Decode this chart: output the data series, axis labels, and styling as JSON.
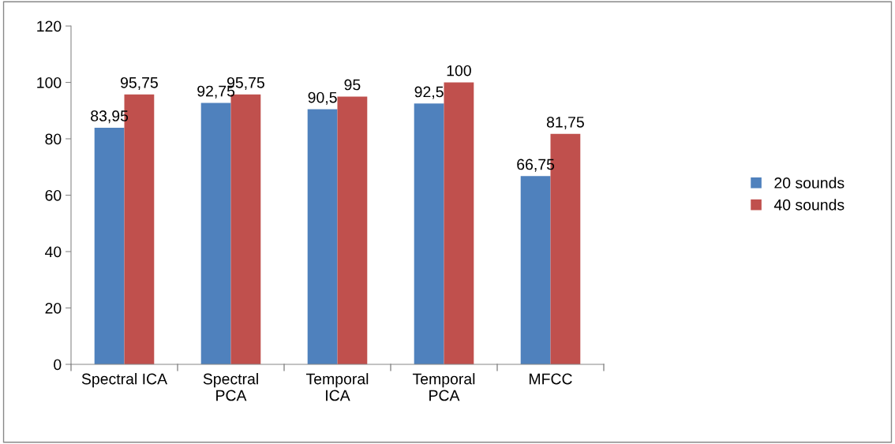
{
  "chart_data": {
    "type": "bar",
    "categories": [
      "Spectral ICA",
      "Spectral\nPCA",
      "Temporal\nICA",
      "Temporal\nPCA",
      "MFCC"
    ],
    "series": [
      {
        "name": "20 sounds",
        "color": "#4f81bd",
        "values": [
          83.95,
          92.75,
          90.5,
          92.5,
          66.75
        ],
        "value_labels": [
          "83,95",
          "92,75",
          "90,5",
          "92,5",
          "66,75"
        ]
      },
      {
        "name": "40 sounds",
        "color": "#c0504d",
        "values": [
          95.75,
          95.75,
          95,
          100,
          81.75
        ],
        "value_labels": [
          "95,75",
          "95,75",
          "95",
          "100",
          "81,75"
        ]
      }
    ],
    "ylim": [
      0,
      120
    ],
    "yticks": [
      0,
      20,
      40,
      60,
      80,
      100,
      120
    ],
    "grid": false,
    "legend": "right"
  }
}
